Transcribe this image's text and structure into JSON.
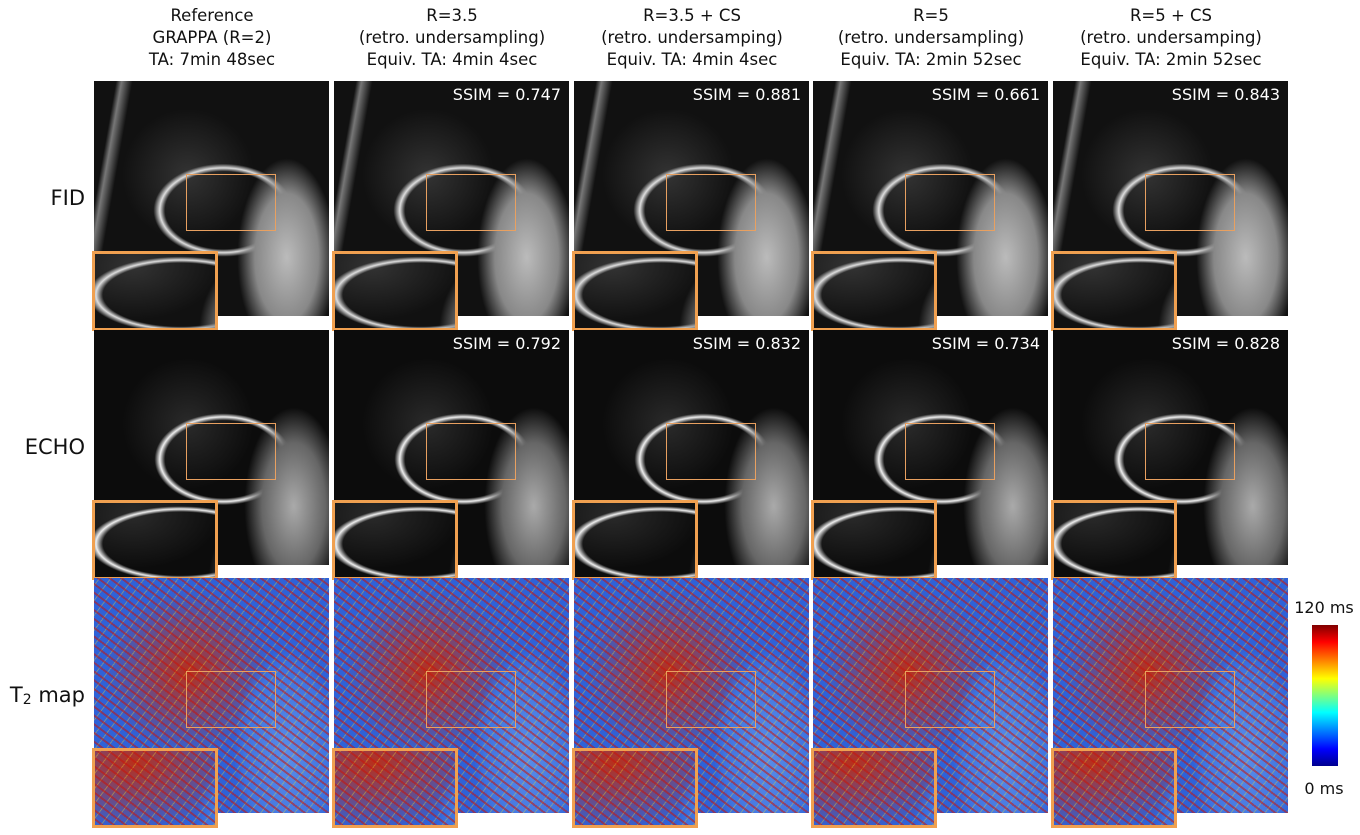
{
  "columns": [
    {
      "header": [
        "Reference",
        "GRAPPA (R=2)",
        "TA: 7min 48sec"
      ]
    },
    {
      "header": [
        "R=3.5",
        "(retro. undersampling)",
        "Equiv. TA: 4min 4sec"
      ]
    },
    {
      "header": [
        "R=3.5 + CS",
        "(retro. undersamping)",
        "Equiv. TA: 4min 4sec"
      ]
    },
    {
      "header": [
        "R=5",
        "(retro. undersampling)",
        "Equiv. TA: 2min 52sec"
      ]
    },
    {
      "header": [
        "R=5 + CS",
        "(retro. undersamping)",
        "Equiv. TA: 2min 52sec"
      ]
    }
  ],
  "rows": [
    {
      "label": {
        "main": "FID"
      },
      "ssim": [
        "SSIM = 0.747",
        "SSIM = 0.881",
        "SSIM = 0.661",
        "SSIM = 0.843"
      ]
    },
    {
      "label": {
        "main": "ECHO"
      },
      "ssim": [
        "SSIM = 0.792",
        "SSIM = 0.832",
        "SSIM = 0.734",
        "SSIM = 0.828"
      ]
    },
    {
      "label": {
        "main": "T",
        "sub": "2",
        "rest": " map"
      }
    }
  ],
  "colorbar": {
    "max_label": "120 ms",
    "min_label": "0 ms"
  }
}
